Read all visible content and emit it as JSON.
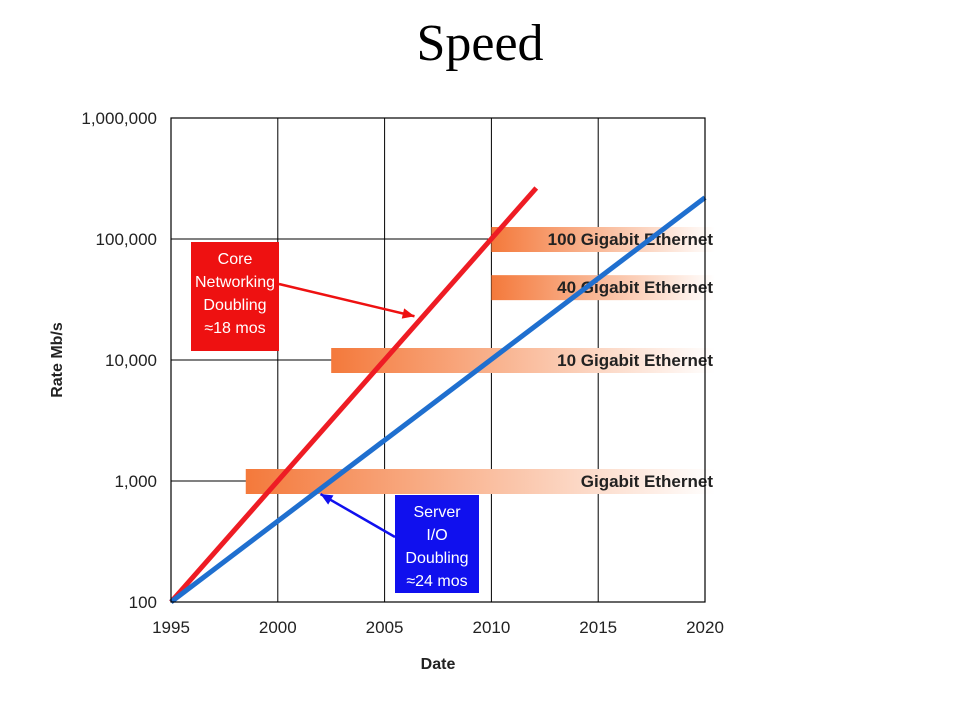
{
  "title": "Speed",
  "chart_data": {
    "type": "line",
    "xlabel": "Date",
    "ylabel": "Rate Mb/s",
    "xlim": [
      1995,
      2020
    ],
    "ylim": [
      100,
      1000000
    ],
    "y_scale": "log",
    "grid": true,
    "x_ticks": [
      1995,
      2000,
      2005,
      2010,
      2015,
      2020
    ],
    "x_tick_labels": [
      "1995",
      "2000",
      "2005",
      "2010",
      "2015",
      "2020"
    ],
    "y_ticks": [
      100,
      1000,
      10000,
      100000,
      1000000
    ],
    "y_tick_labels": [
      "100",
      "1,000",
      "10,000",
      "100,000",
      "1,000,000"
    ],
    "series": [
      {
        "x": [
          1995,
          2012.1
        ],
        "y": [
          100,
          264000
        ],
        "color": "#ee1c24"
      },
      {
        "x": [
          1995,
          2020
        ],
        "y": [
          100,
          220000
        ],
        "color": "#1f6fcf"
      }
    ],
    "bars": [
      {
        "label": "Gigabit Ethernet",
        "start": 1998.5,
        "value": 1000
      },
      {
        "label": "10 Gigabit Ethernet",
        "start": 2002.5,
        "value": 10000
      },
      {
        "label": "40 Gigabit Ethernet",
        "start": 2010,
        "value": 40000
      },
      {
        "label": "100 Gigabit Ethernet",
        "start": 2010,
        "value": 100000
      }
    ],
    "annotations": [
      {
        "lines": [
          "Core",
          "Networking",
          "Doubling",
          "≈18 mos"
        ],
        "color": "#ee1111",
        "arrow_to": [
          2006.4,
          23000
        ]
      },
      {
        "lines": [
          "Server",
          "I/O",
          "Doubling",
          "≈24 mos"
        ],
        "color": "#1010ee",
        "arrow_to": [
          2002.0,
          780
        ]
      }
    ]
  }
}
